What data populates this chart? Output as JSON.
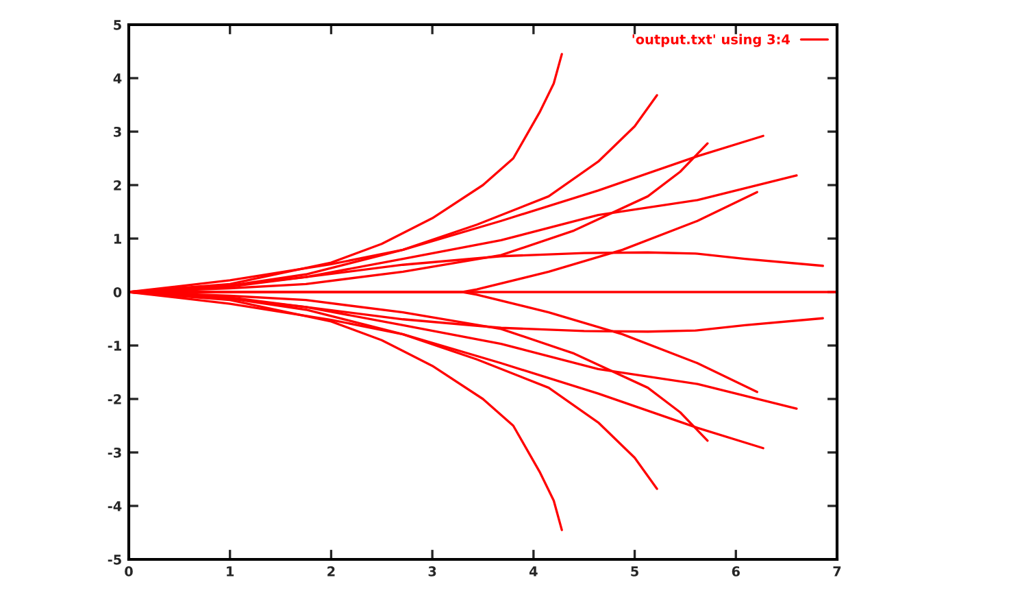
{
  "chart_data": {
    "type": "line",
    "xlim": [
      0,
      7
    ],
    "ylim": [
      -5,
      5
    ],
    "xticks": [
      0,
      1,
      2,
      3,
      4,
      5,
      6,
      7
    ],
    "yticks": [
      -5,
      -4,
      -3,
      -2,
      -1,
      0,
      1,
      2,
      3,
      4,
      5
    ],
    "grid": false,
    "legend": "top right",
    "series": [
      {
        "name": "'output.txt' using 3:4",
        "color": "#ff0000",
        "x": [
          0,
          7
        ],
        "values": [
          0,
          0
        ]
      },
      {
        "color": "#ff0000",
        "x": [
          0,
          1,
          1.5,
          2,
          2.5,
          3,
          3.5,
          3.8,
          4.06,
          4.2,
          4.28
        ],
        "values": [
          0,
          0.15,
          0.35,
          0.55,
          0.9,
          1.38,
          2.0,
          2.5,
          3.36,
          3.9,
          4.45
        ]
      },
      {
        "color": "#ff0000",
        "x": [
          0,
          1,
          1.5,
          2,
          2.5,
          3,
          3.5,
          3.8,
          4.06,
          4.2,
          4.28
        ],
        "values": [
          0,
          -0.15,
          -0.35,
          -0.55,
          -0.9,
          -1.38,
          -2.0,
          -2.5,
          -3.36,
          -3.9,
          -4.45
        ]
      },
      {
        "color": "#ff0000",
        "x": [
          0,
          1,
          1.75,
          2.71,
          3.44,
          4.15,
          4.64,
          5.0,
          5.22
        ],
        "values": [
          0,
          0.12,
          0.33,
          0.79,
          1.26,
          1.79,
          2.44,
          3.1,
          3.68
        ]
      },
      {
        "color": "#ff0000",
        "x": [
          0,
          1,
          1.75,
          2.71,
          3.44,
          4.15,
          4.64,
          5.0,
          5.22
        ],
        "values": [
          0,
          -0.12,
          -0.33,
          -0.79,
          -1.26,
          -1.79,
          -2.44,
          -3.1,
          -3.68
        ]
      },
      {
        "color": "#ff0000",
        "x": [
          0,
          1,
          1.75,
          2.71,
          3.68,
          4.4,
          5.13,
          5.45,
          5.72
        ],
        "values": [
          0,
          0.07,
          0.15,
          0.38,
          0.69,
          1.15,
          1.79,
          2.25,
          2.78
        ]
      },
      {
        "color": "#ff0000",
        "x": [
          0,
          1,
          1.75,
          2.71,
          3.68,
          4.4,
          5.13,
          5.45,
          5.72
        ],
        "values": [
          0,
          -0.07,
          -0.15,
          -0.38,
          -0.69,
          -1.15,
          -1.79,
          -2.25,
          -2.78
        ]
      },
      {
        "color": "#ff0000",
        "x": [
          0,
          1,
          2,
          2.71,
          3.68,
          4.64,
          5.62,
          6.27
        ],
        "values": [
          0,
          0.22,
          0.52,
          0.79,
          1.33,
          1.9,
          2.54,
          2.92
        ]
      },
      {
        "color": "#ff0000",
        "x": [
          0,
          1,
          2,
          2.71,
          3.68,
          4.64,
          5.62,
          6.27
        ],
        "values": [
          0,
          -0.22,
          -0.52,
          -0.79,
          -1.33,
          -1.9,
          -2.54,
          -2.92
        ]
      },
      {
        "color": "#ff0000",
        "x": [
          0,
          1,
          1.75,
          2.71,
          3.68,
          4.64,
          5.62,
          6.6
        ],
        "values": [
          0,
          0.12,
          0.28,
          0.62,
          0.97,
          1.44,
          1.72,
          2.18
        ]
      },
      {
        "color": "#ff0000",
        "x": [
          0,
          1,
          1.75,
          2.71,
          3.68,
          4.64,
          5.62,
          6.6
        ],
        "values": [
          0,
          -0.12,
          -0.28,
          -0.62,
          -0.97,
          -1.44,
          -1.72,
          -2.18
        ]
      },
      {
        "color": "#ff0000",
        "x": [
          0,
          3.3,
          3.44,
          4.15,
          4.88,
          5.62,
          6.21
        ],
        "values": [
          0,
          0,
          0.05,
          0.38,
          0.79,
          1.33,
          1.87
        ]
      },
      {
        "color": "#ff0000",
        "x": [
          0,
          3.3,
          3.44,
          4.15,
          4.88,
          5.62,
          6.21
        ],
        "values": [
          0,
          0,
          -0.05,
          -0.38,
          -0.79,
          -1.33,
          -1.87
        ]
      },
      {
        "color": "#ff0000",
        "x": [
          0,
          1,
          1.75,
          2.71,
          3.68,
          4.5,
          5.13,
          5.6,
          6.09,
          6.86
        ],
        "values": [
          0,
          0.1,
          0.28,
          0.51,
          0.67,
          0.73,
          0.74,
          0.72,
          0.62,
          0.49
        ]
      },
      {
        "color": "#ff0000",
        "x": [
          0,
          1,
          1.75,
          2.71,
          3.68,
          4.5,
          5.13,
          5.6,
          6.09,
          6.86
        ],
        "values": [
          0,
          -0.1,
          -0.28,
          -0.51,
          -0.67,
          -0.73,
          -0.74,
          -0.72,
          -0.62,
          -0.49
        ]
      }
    ]
  }
}
